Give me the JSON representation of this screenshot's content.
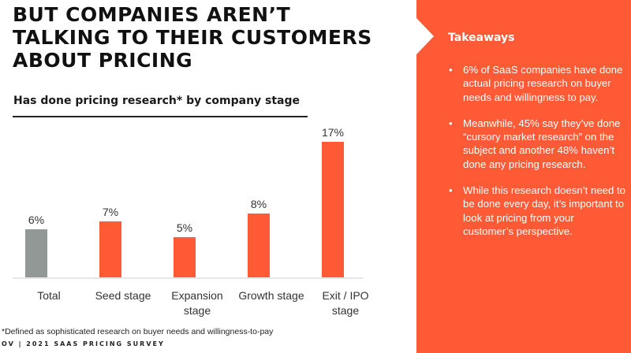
{
  "slide": {
    "title_lines": [
      "BUT COMPANIES AREN’T",
      "TALKING TO THEIR CUSTOMERS",
      "ABOUT PRICING"
    ],
    "chart_subtitle": "Has done pricing research* by company stage",
    "footnote": "*Defined as sophisticated research on buyer needs and willingness-to-pay",
    "footer": "OV | 2021 SAAS PRICING SURVEY"
  },
  "takeaways": {
    "heading": "Takeaways",
    "bullet_glyph": "•",
    "items": [
      "6% of SaaS companies have done actual pricing research on buyer needs and willingness to pay.",
      "Meanwhile, 45% say they’ve done “cursory market research” on the subject and another 48% haven’t done any pricing research.",
      "While this research doesn’t need to be done every day, it’s important to look at pricing from your customer’s perspective."
    ]
  },
  "colors": {
    "accent": "#ff5a36",
    "total_bar": "#929896",
    "panel_bg": "#ff5a36"
  },
  "chart_data": {
    "type": "bar",
    "title": "Has done pricing research* by company stage",
    "categories": [
      "Total",
      "Seed stage",
      "Expansion stage",
      "Growth stage",
      "Exit / IPO stage"
    ],
    "category_lines": [
      [
        "Total"
      ],
      [
        "Seed stage"
      ],
      [
        "Expansion",
        "stage"
      ],
      [
        "Growth stage"
      ],
      [
        "Exit / IPO",
        "stage"
      ]
    ],
    "values": [
      6,
      7,
      5,
      8,
      17
    ],
    "value_labels": [
      "6%",
      "7%",
      "5%",
      "8%",
      "17%"
    ],
    "bar_colors": [
      "#929896",
      "#ff5a36",
      "#ff5a36",
      "#ff5a36",
      "#ff5a36"
    ],
    "xlabel": "",
    "ylabel": "",
    "ylim": [
      0,
      18
    ],
    "unit": "%",
    "grid": false,
    "legend": null
  }
}
